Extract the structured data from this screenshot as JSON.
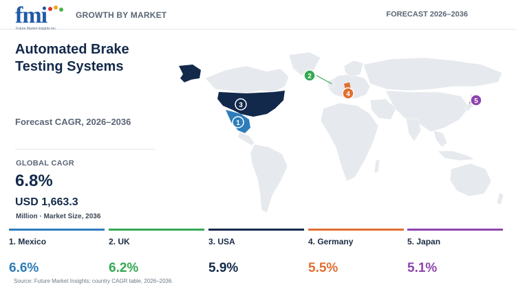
{
  "logo": {
    "wordmark": "fmi",
    "tagline": "Future Market Insights Inc.",
    "colors": [
      "#e4312b",
      "#f5a623",
      "#4caf50",
      "#2e86c1",
      "#7b3fa0"
    ]
  },
  "header": {
    "left": "GROWTH BY MARKET",
    "right": "FORECAST 2026–2036"
  },
  "title": "Automated Brake Testing Systems",
  "cagr_label": "Forecast CAGR, 2026–2036",
  "global": {
    "label": "GLOBAL CAGR",
    "value": "6.8%",
    "size_value": "USD 1,663.3",
    "size_unit": "Million · Market Size, 2036"
  },
  "map": {
    "land_color": "#e6e9ed",
    "highlight_color": "#13294b",
    "markers": [
      {
        "num": "1",
        "country": "Mexico",
        "color": "#2e7dba"
      },
      {
        "num": "2",
        "country": "UK",
        "color": "#34a853"
      },
      {
        "num": "3",
        "country": "USA",
        "color": "#13294b"
      },
      {
        "num": "4",
        "country": "Germany",
        "color": "#e07030"
      },
      {
        "num": "5",
        "country": "Japan",
        "color": "#8e44ad"
      }
    ]
  },
  "countries": [
    {
      "name": "1. Mexico",
      "cagr": "6.6%",
      "color": "#2e7dba"
    },
    {
      "name": "2. UK",
      "cagr": "6.2%",
      "color": "#34a853"
    },
    {
      "name": "3. USA",
      "cagr": "5.9%",
      "color": "#13294b"
    },
    {
      "name": "4. Germany",
      "cagr": "5.5%",
      "color": "#e07030"
    },
    {
      "name": "5. Japan",
      "cagr": "5.1%",
      "color": "#8e44ad"
    }
  ],
  "source": "Source: Future Market Insights; country CAGR table, 2026–2036."
}
